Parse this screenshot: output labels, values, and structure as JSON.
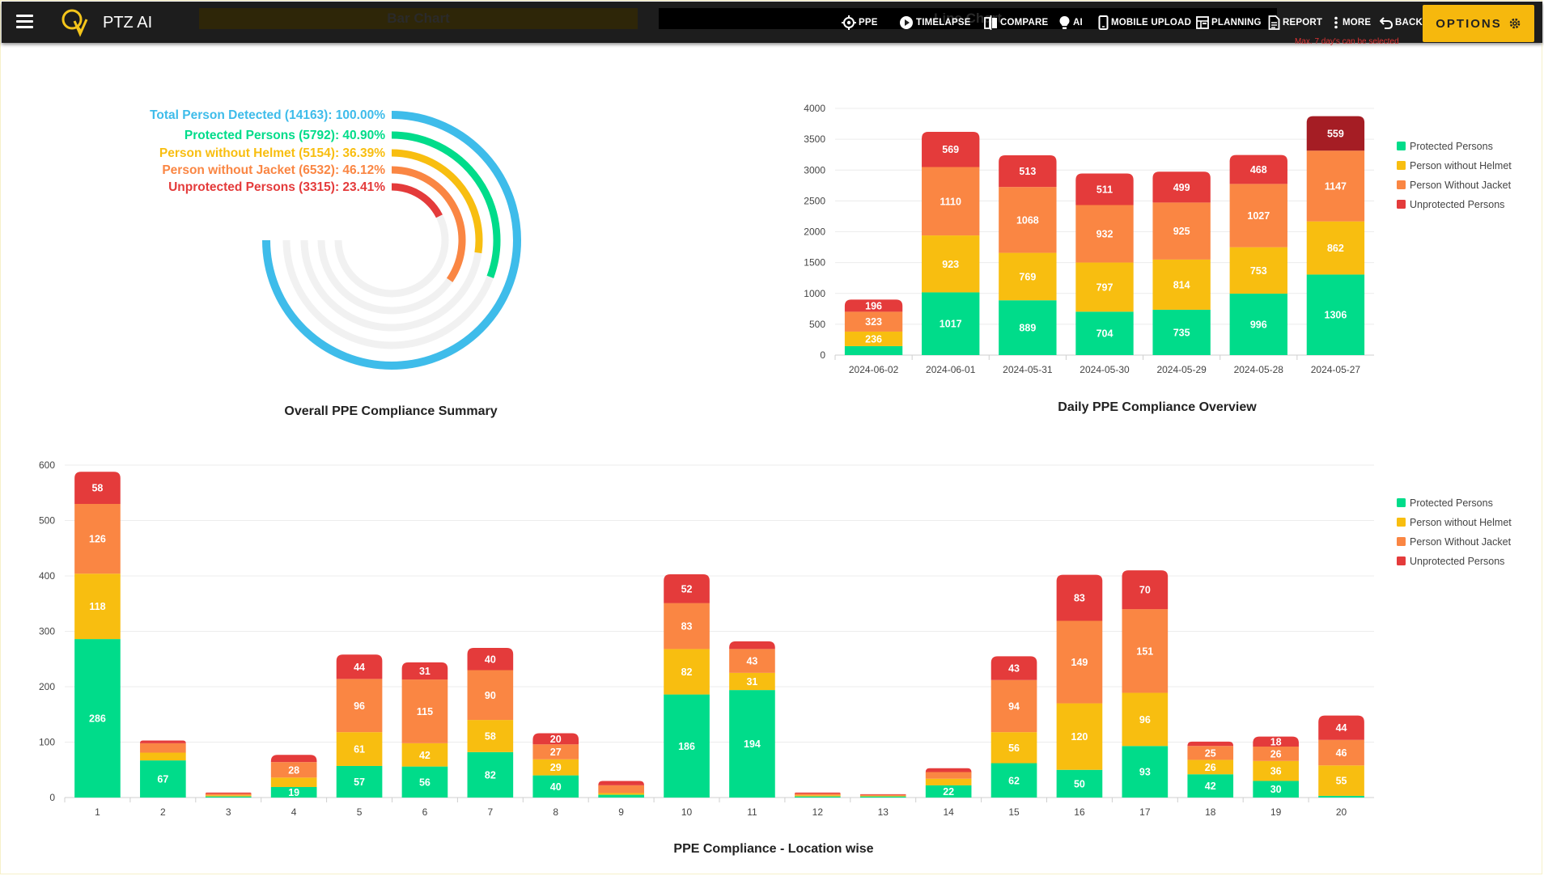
{
  "app": {
    "title": "PTZ AI",
    "ghost_tab_bar": "Bar Chart",
    "ghost_tab_line": "Line Chart",
    "hint": "Max. 7 day's can be selected"
  },
  "nav": [
    {
      "label": "PPE",
      "icon": "ppe-target-icon"
    },
    {
      "label": "TIMELAPSE",
      "icon": "play-icon"
    },
    {
      "label": "COMPARE",
      "icon": "compare-icon"
    },
    {
      "label": "AI",
      "icon": "ai-bulb-icon"
    },
    {
      "label": "MOBILE UPLOAD",
      "icon": "mobile-icon"
    },
    {
      "label": "PLANNING",
      "icon": "planning-icon"
    },
    {
      "label": "REPORT",
      "icon": "report-icon"
    },
    {
      "label": "MORE",
      "icon": "more-vertical-icon"
    },
    {
      "label": "BACK",
      "icon": "back-arrow-icon"
    }
  ],
  "options_label": "OPTIONS",
  "colors": {
    "protected": "#00dc8a",
    "helmet": "#f8be10",
    "jacket": "#fa8643",
    "unprotected": "#e43b3b",
    "unprotected_dark": "#a51d24",
    "total": "#3ebcea",
    "track": "#f1f1f1"
  },
  "chart_data": [
    {
      "type": "radial-bar",
      "title": "Overall PPE Compliance Summary",
      "series": [
        {
          "name": "Total Person Detected",
          "count": 14163,
          "percent": 100.0,
          "label": "Total Person Detected (14163): 100.00%"
        },
        {
          "name": "Protected Persons",
          "count": 5792,
          "percent": 40.9,
          "label": "Protected Persons (5792): 40.90%"
        },
        {
          "name": "Person without Helmet",
          "count": 5154,
          "percent": 36.39,
          "label": "Person without Helmet (5154): 36.39%"
        },
        {
          "name": "Person without Jacket",
          "count": 6532,
          "percent": 46.12,
          "label": "Person without Jacket (6532): 46.12%"
        },
        {
          "name": "Unprotected Persons",
          "count": 3315,
          "percent": 23.41,
          "label": "Unprotected Persons (3315): 23.41%"
        }
      ]
    },
    {
      "type": "bar",
      "stacked": true,
      "title": "Daily PPE Compliance Overview",
      "categories": [
        "2024-06-02",
        "2024-06-01",
        "2024-05-31",
        "2024-05-30",
        "2024-05-29",
        "2024-05-28",
        "2024-05-27"
      ],
      "ylim": [
        0,
        4000
      ],
      "yticks": [
        0,
        500,
        1000,
        1500,
        2000,
        2500,
        3000,
        3500,
        4000
      ],
      "legend": [
        "Protected Persons",
        "Person without Helmet",
        "Person Without Jacket",
        "Unprotected Persons"
      ],
      "series": [
        {
          "name": "Protected Persons",
          "values": [
            145,
            1017,
            889,
            704,
            735,
            996,
            1306
          ]
        },
        {
          "name": "Person without Helmet",
          "values": [
            236,
            923,
            769,
            797,
            814,
            753,
            862
          ]
        },
        {
          "name": "Person Without Jacket",
          "values": [
            323,
            1110,
            1068,
            932,
            925,
            1027,
            1147
          ]
        },
        {
          "name": "Unprotected Persons",
          "values": [
            196,
            569,
            513,
            511,
            499,
            468,
            559
          ]
        }
      ]
    },
    {
      "type": "bar",
      "stacked": true,
      "title": "PPE Compliance - Location wise",
      "categories": [
        "1",
        "2",
        "3",
        "4",
        "5",
        "6",
        "7",
        "8",
        "9",
        "10",
        "11",
        "12",
        "13",
        "14",
        "15",
        "16",
        "17",
        "18",
        "19",
        "20"
      ],
      "ylim": [
        0,
        600
      ],
      "yticks": [
        0,
        100,
        200,
        300,
        400,
        500,
        600
      ],
      "legend": [
        "Protected Persons",
        "Person without Helmet",
        "Person Without Jacket",
        "Unprotected Persons"
      ],
      "series": [
        {
          "name": "Protected Persons",
          "values": [
            286,
            67,
            2,
            19,
            57,
            56,
            82,
            40,
            5,
            186,
            194,
            2,
            2,
            22,
            62,
            50,
            93,
            42,
            30,
            3
          ]
        },
        {
          "name": "Person without Helmet",
          "values": [
            118,
            14,
            2,
            17,
            61,
            42,
            58,
            29,
            3,
            82,
            31,
            2,
            1,
            12,
            56,
            120,
            96,
            26,
            36,
            55
          ]
        },
        {
          "name": "Person Without Jacket",
          "values": [
            126,
            17,
            3,
            28,
            96,
            115,
            90,
            27,
            14,
            83,
            43,
            3,
            2,
            12,
            94,
            149,
            151,
            25,
            26,
            46
          ]
        },
        {
          "name": "Unprotected Persons",
          "values": [
            58,
            5,
            2,
            13,
            44,
            31,
            40,
            20,
            8,
            52,
            14,
            2,
            1,
            7,
            43,
            83,
            70,
            8,
            18,
            44
          ]
        }
      ]
    }
  ]
}
